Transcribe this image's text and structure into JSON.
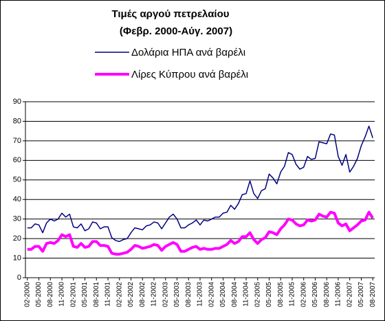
{
  "chart_data": {
    "type": "line",
    "title": [
      "Τιμές αργού πετρελαίου",
      "(Φεβρ. 2000-Αύγ. 2007)"
    ],
    "categories": [
      "02-2000",
      null,
      null,
      "05-2000",
      null,
      null,
      "08-2000",
      null,
      null,
      "11-2000",
      null,
      null,
      "02-2001",
      null,
      null,
      "05-2001",
      null,
      null,
      "08-2001",
      null,
      null,
      "11-2001",
      null,
      null,
      "02-2002",
      null,
      null,
      "05-2002",
      null,
      null,
      "08-2002",
      null,
      null,
      "11-2002",
      null,
      null,
      "02-2003",
      null,
      null,
      "05-2003",
      null,
      null,
      "08-2003",
      null,
      null,
      "11-2003",
      null,
      null,
      "02-2004",
      null,
      null,
      "05-2004",
      null,
      null,
      "08-2004",
      null,
      null,
      "11-2004",
      null,
      null,
      "02-2005",
      null,
      null,
      "05-2005",
      null,
      null,
      "08-2005",
      null,
      null,
      "11-2005",
      null,
      null,
      "02-2006",
      null,
      null,
      "05-2006",
      null,
      null,
      "08-2006",
      null,
      null,
      "11-2006",
      null,
      null,
      "02-2007",
      null,
      null,
      "05-2007",
      null,
      null,
      "08-2007"
    ],
    "series": [
      {
        "name": "Δολάρια ΗΠΑ ανά βαρέλι",
        "color": "#000080",
        "width": 1.5,
        "values": [
          25.5,
          25.5,
          27.5,
          27,
          23,
          28,
          30,
          29,
          30,
          33,
          31,
          32.5,
          26,
          25.5,
          27.5,
          24,
          25,
          28.5,
          28,
          25,
          26,
          26,
          20.5,
          19,
          18.5,
          19.5,
          20,
          23,
          25.5,
          25,
          24.5,
          26.5,
          27,
          28.5,
          28,
          25,
          28,
          31,
          32.5,
          30,
          25.5,
          25.5,
          27,
          28,
          29.5,
          27,
          29.5,
          29,
          30,
          31,
          31,
          33,
          33.5,
          37,
          35,
          38,
          42.5,
          43,
          49.5,
          43,
          40.5,
          44.5,
          45.5,
          53,
          51,
          48,
          54,
          57,
          64,
          63,
          58,
          55.5,
          56.5,
          62,
          60.5,
          61,
          69.5,
          69,
          68.5,
          73.5,
          73,
          62,
          57.5,
          63,
          54,
          57,
          61,
          67.5,
          72,
          77.5,
          71.5
        ]
      },
      {
        "name": "Λίρες Κύπρου ανά  βαρέλι",
        "color": "#ff00ff",
        "width": 4,
        "values": [
          14.5,
          14.5,
          16,
          16,
          13.5,
          17.5,
          18,
          17.5,
          19,
          22,
          21,
          22,
          16,
          15.5,
          17.5,
          15.5,
          16,
          18.5,
          18.5,
          16.5,
          16.5,
          16,
          12.5,
          12,
          12,
          12.5,
          13,
          14.5,
          16.5,
          16,
          15,
          15.5,
          16,
          17,
          16.5,
          14,
          16,
          17,
          18,
          17,
          13.5,
          13.5,
          14.5,
          15.5,
          16,
          14.5,
          15,
          14.5,
          14.5,
          15,
          15,
          16,
          17,
          19,
          17.5,
          18.5,
          21,
          21,
          23,
          19.5,
          17.5,
          19.5,
          20.5,
          23.5,
          23,
          22,
          25,
          27,
          30,
          29.5,
          27.5,
          26.5,
          27,
          29.5,
          29,
          29.5,
          32.5,
          31.5,
          31,
          33.5,
          33,
          28,
          26.5,
          27.5,
          24,
          25.5,
          27,
          29,
          29.5,
          33.5,
          30.5
        ]
      }
    ],
    "ylim": [
      0,
      90
    ],
    "yticks": [
      0,
      10,
      20,
      30,
      40,
      50,
      60,
      70,
      80,
      90
    ],
    "grid": true
  }
}
